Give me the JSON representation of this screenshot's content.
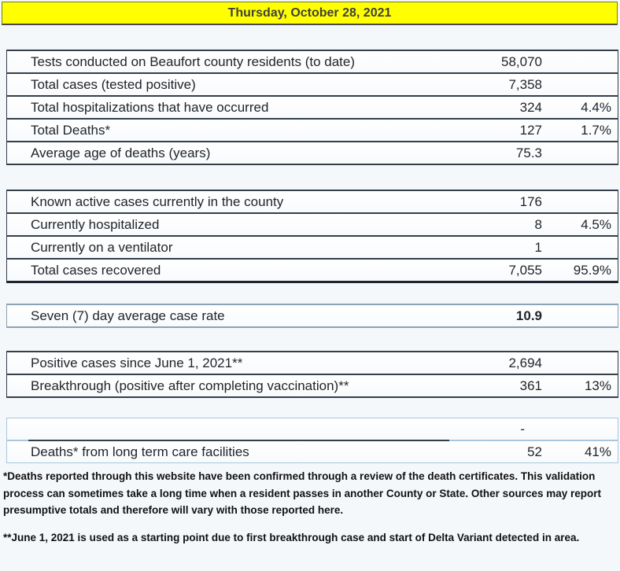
{
  "header": {
    "title": "Thursday, October 28, 2021"
  },
  "table": {
    "rows": [
      {
        "label": "Tests conducted on Beaufort county residents (to date)",
        "value": "58,070",
        "pct": ""
      },
      {
        "label": "Total cases (tested positive)",
        "value": "7,358",
        "pct": ""
      },
      {
        "label": "Total hospitalizations that have occurred",
        "value": "324",
        "pct": "4.4%"
      },
      {
        "label": "Total Deaths*",
        "value": "127",
        "pct": "1.7%"
      },
      {
        "label": "Average age of deaths (years)",
        "value": "75.3",
        "pct": ""
      },
      {
        "label": "Known active cases currently in the county",
        "value": "176",
        "pct": ""
      },
      {
        "label": "Currently hospitalized",
        "value": "8",
        "pct": "4.5%"
      },
      {
        "label": "Currently on a ventilator",
        "value": "1",
        "pct": ""
      },
      {
        "label": "Total cases recovered",
        "value": "7,055",
        "pct": "95.9%"
      },
      {
        "label": "Seven (7) day average case rate",
        "value": "10.9",
        "pct": ""
      },
      {
        "label": "Positive cases since June 1, 2021**",
        "value": "2,694",
        "pct": ""
      },
      {
        "label": "Breakthrough (positive after completing vaccination)**",
        "value": "361",
        "pct": "13%"
      },
      {
        "label": "",
        "value": "-",
        "pct": ""
      },
      {
        "label": "Deaths* from long term care facilities",
        "value": "52",
        "pct": "41%"
      }
    ]
  },
  "footnotes": [
    "*Deaths reported through this website have been confirmed through a review of the death certificates.  This validation process can sometimes take a long time when a resident passes in another County or State.  Other sources may report presumptive totals and therefore will vary with those reported here.",
    "**June 1, 2021 is used as a starting point due to first breakthrough case and start of Delta Variant detected in area."
  ],
  "colors": {
    "header_bg": "#ffff00",
    "row_border_dark": "#333f4b",
    "row_border_light": "#a9c7dd",
    "page_bg": "#f5f8fb"
  }
}
